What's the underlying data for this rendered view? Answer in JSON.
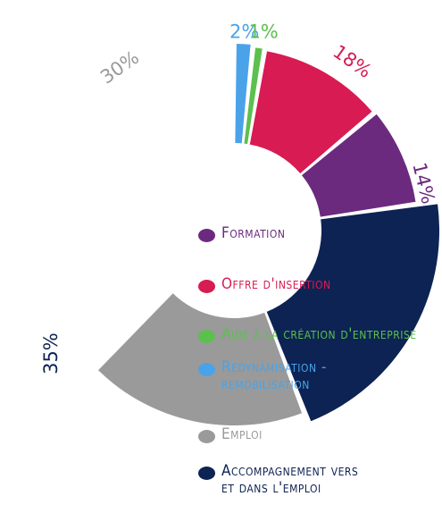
{
  "chart_data": {
    "type": "pie",
    "variant": "half-donut",
    "title": "",
    "slices": [
      {
        "label": "Redynamisation - remobilisation",
        "value": 2,
        "display": "2%",
        "color": "#4aa3e8"
      },
      {
        "label": "Aide à la création d'entreprise",
        "value": 1,
        "display": "1%",
        "color": "#5cc04e"
      },
      {
        "label": "Offre d'insertion",
        "value": 18,
        "display": "18%",
        "color": "#d81b52"
      },
      {
        "label": "Formation",
        "value": 14,
        "display": "14%",
        "color": "#6b2a7e"
      },
      {
        "label": "Accompagnement vers et dans l'emploi",
        "value": 35,
        "display": "35%",
        "color": "#0d2354"
      },
      {
        "label": "Emploi",
        "value": 30,
        "display": "30%",
        "color": "#9a9a9a"
      }
    ],
    "legend_position": "center-right",
    "legend": [
      {
        "label": "Formation",
        "color": "#6b2a7e"
      },
      {
        "label": "Offre d'insertion",
        "color": "#d81b52"
      },
      {
        "label": "Aide à la création d'entreprise",
        "color": "#5cc04e"
      },
      {
        "label": "Redynamisation -\nremobilisation",
        "color": "#4aa3e8"
      },
      {
        "label": "Emploi",
        "color": "#9a9a9a"
      },
      {
        "label": "Accompagnement vers\net dans l'emploi",
        "color": "#0d2354"
      }
    ]
  }
}
